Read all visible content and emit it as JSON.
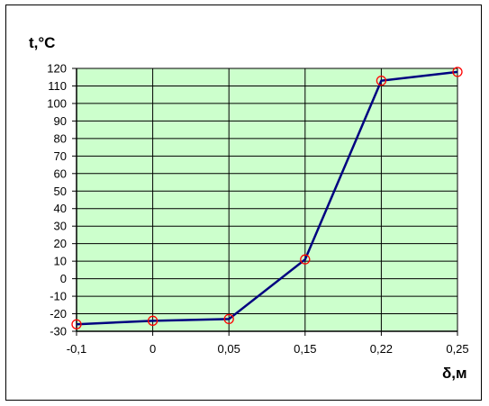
{
  "chart_data": {
    "type": "line",
    "x_categories": [
      "-0,1",
      "0",
      "0,05",
      "0,15",
      "0,22",
      "0,25"
    ],
    "series": [
      {
        "values": [
          -26,
          -24,
          -23,
          11,
          113,
          118
        ],
        "color": "#000080",
        "marker_color": "#ff0000"
      }
    ],
    "ylabel": "t,°C",
    "xlabel": "δ,м",
    "ylim": [
      -30,
      120
    ],
    "ytick_step": 10,
    "grid": true,
    "plot_background": "#ccffcc"
  }
}
